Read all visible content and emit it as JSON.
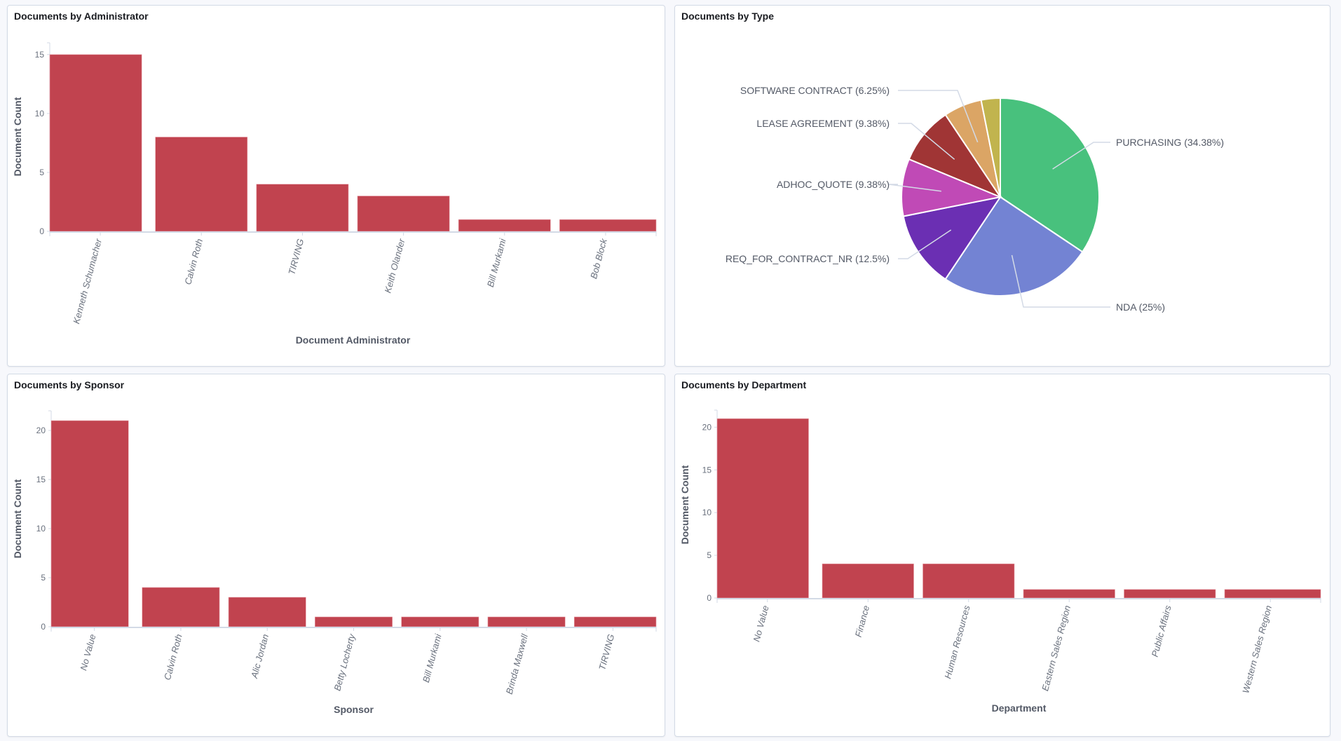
{
  "panels": [
    {
      "title": "Documents by Administrator"
    },
    {
      "title": "Documents by Type"
    },
    {
      "title": "Documents by Sponsor"
    },
    {
      "title": "Documents by Department"
    }
  ],
  "colors": {
    "bar": "#c1434f",
    "axis": "#d3dae6"
  },
  "chart_data": [
    {
      "type": "bar",
      "title": "Documents by Administrator",
      "xlabel": "Document Administrator",
      "ylabel": "Document Count",
      "categories": [
        "Kenneth Schumacher",
        "Calvin Roth",
        "TIRVING",
        "Keith Olander",
        "Bill Murkami",
        "Bob Block"
      ],
      "values": [
        15,
        8,
        4,
        3,
        1,
        1
      ],
      "yticks": [
        0,
        5,
        10,
        15
      ],
      "ylim": [
        0,
        16
      ],
      "grid": false
    },
    {
      "type": "pie",
      "title": "Documents by Type",
      "slices": [
        {
          "label": "PURCHASING (34.38%)",
          "value": 34.38,
          "color": "#48c17d"
        },
        {
          "label": "NDA (25%)",
          "value": 25,
          "color": "#7383d3"
        },
        {
          "label": "REQ_FOR_CONTRACT_NR (12.5%)",
          "value": 12.5,
          "color": "#6b2fb3"
        },
        {
          "label": "ADHOC_QUOTE (9.38%)",
          "value": 9.38,
          "color": "#c04ab6"
        },
        {
          "label": "LEASE AGREEMENT (9.38%)",
          "value": 9.38,
          "color": "#a03535"
        },
        {
          "label": "SOFTWARE CONTRACT (6.25%)",
          "value": 6.25,
          "color": "#dba565"
        },
        {
          "label": "",
          "value": 3.12,
          "color": "#c1b44e"
        }
      ]
    },
    {
      "type": "bar",
      "title": "Documents by Sponsor",
      "xlabel": "Sponsor",
      "ylabel": "Document Count",
      "categories": [
        "No Value",
        "Calvin Roth",
        "Alic Jordan",
        "Betty Locherty",
        "Bill Murkami",
        "Brinda Maxwell",
        "TIRVING"
      ],
      "values": [
        21,
        4,
        3,
        1,
        1,
        1,
        1
      ],
      "yticks": [
        0,
        5,
        10,
        15,
        20
      ],
      "ylim": [
        0,
        22
      ],
      "grid": false
    },
    {
      "type": "bar",
      "title": "Documents by Department",
      "xlabel": "Department",
      "ylabel": "Document Count",
      "categories": [
        "No Value",
        "Finance",
        "Human Resources",
        "Eastern Sales Region",
        "Public Affairs",
        "Western Sales Region"
      ],
      "values": [
        21,
        4,
        4,
        1,
        1,
        1
      ],
      "yticks": [
        0,
        5,
        10,
        15,
        20
      ],
      "ylim": [
        0,
        22
      ],
      "grid": false
    }
  ]
}
